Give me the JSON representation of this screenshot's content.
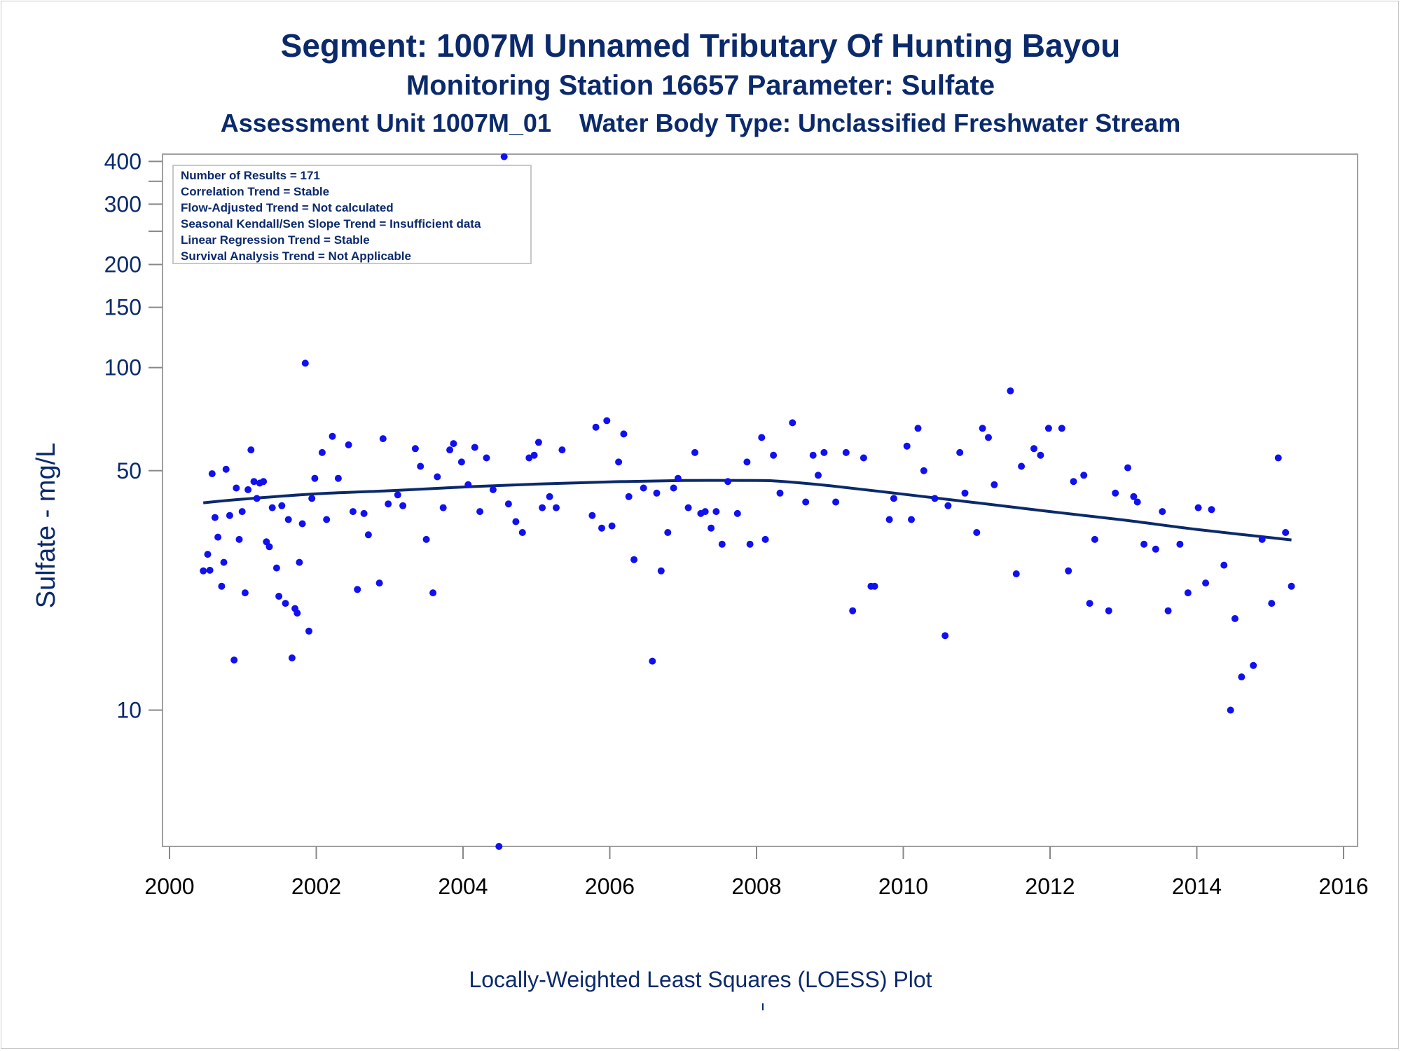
{
  "header": {
    "title": "Segment: 1007M  Unnamed Tributary Of Hunting Bayou",
    "subtitle": "Monitoring Station 16657 Parameter: Sulfate",
    "subtitle2_part1": "Assessment Unit 1007M_01",
    "subtitle2_part2": "Water Body Type: Unclassified Freshwater Stream"
  },
  "footer": {
    "caption": "Locally-Weighted Least Squares (LOESS) Plot"
  },
  "stats": [
    "Number of Results = 171",
    "Correlation Trend = Stable",
    "Flow-Adjusted Trend = Not calculated",
    "Seasonal Kendall/Sen Slope Trend = Insufficient data",
    "Linear Regression Trend = Stable",
    "Survival Analysis Trend = Not Applicable"
  ],
  "colors": {
    "points": "#1010f0",
    "loess": "#0b2a6b",
    "text": "#0b2a6b",
    "axis": "#a0a0a0"
  },
  "chart_data": {
    "type": "scatter",
    "ylabel": "Sulfate - mg/L",
    "xlabel": "",
    "yscale": "log",
    "xlim": [
      2000,
      2016
    ],
    "ylim": [
      4,
      420
    ],
    "x_ticks": [
      "2000",
      "2002",
      "2004",
      "2006",
      "2008",
      "2010",
      "2012",
      "2014",
      "2016"
    ],
    "y_ticks": [
      {
        "label": "400",
        "value": 400
      },
      {
        "label": "300",
        "value": 300
      },
      {
        "label": "200",
        "value": 200
      },
      {
        "label": "150",
        "value": 150
      },
      {
        "label": "100",
        "value": 100
      },
      {
        "label": "50",
        "value": 50
      },
      {
        "label": "10",
        "value": 10
      }
    ],
    "y_minor_ticks": [
      350,
      250
    ],
    "points": [
      [
        2000.46,
        25.5
      ],
      [
        2000.52,
        28.5
      ],
      [
        2000.55,
        25.6
      ],
      [
        2000.58,
        49
      ],
      [
        2000.62,
        36.5
      ],
      [
        2000.66,
        32
      ],
      [
        2000.71,
        23
      ],
      [
        2000.74,
        27
      ],
      [
        2000.77,
        50.5
      ],
      [
        2000.82,
        37
      ],
      [
        2000.88,
        14
      ],
      [
        2000.91,
        44.5
      ],
      [
        2000.95,
        31.5
      ],
      [
        2000.99,
        38
      ],
      [
        2001.03,
        22
      ],
      [
        2001.07,
        44
      ],
      [
        2001.11,
        57.5
      ],
      [
        2001.15,
        46.5
      ],
      [
        2001.19,
        41.5
      ],
      [
        2001.23,
        46
      ],
      [
        2001.28,
        46.5
      ],
      [
        2001.32,
        31
      ],
      [
        2001.36,
        30
      ],
      [
        2001.4,
        39
      ],
      [
        2001.46,
        26
      ],
      [
        2001.49,
        21.5
      ],
      [
        2001.53,
        39.5
      ],
      [
        2001.58,
        20.5
      ],
      [
        2001.62,
        36
      ],
      [
        2001.67,
        14.2
      ],
      [
        2001.71,
        19.8
      ],
      [
        2001.74,
        19.2
      ],
      [
        2001.77,
        27
      ],
      [
        2001.81,
        35
      ],
      [
        2001.85,
        103
      ],
      [
        2001.9,
        17
      ],
      [
        2001.94,
        41.5
      ],
      [
        2001.98,
        47.5
      ],
      [
        2002.08,
        56.5
      ],
      [
        2002.14,
        36
      ],
      [
        2002.22,
        63
      ],
      [
        2002.3,
        47.5
      ],
      [
        2002.44,
        59.5
      ],
      [
        2002.5,
        38
      ],
      [
        2002.56,
        22.5
      ],
      [
        2002.65,
        37.5
      ],
      [
        2002.71,
        32.5
      ],
      [
        2002.86,
        23.5
      ],
      [
        2002.91,
        62
      ],
      [
        2002.98,
        40
      ],
      [
        2003.11,
        42.5
      ],
      [
        2003.18,
        39.5
      ],
      [
        2003.35,
        58
      ],
      [
        2003.42,
        51.5
      ],
      [
        2003.5,
        31.5
      ],
      [
        2003.59,
        22
      ],
      [
        2003.65,
        48
      ],
      [
        2003.73,
        39
      ],
      [
        2003.82,
        57.5
      ],
      [
        2003.87,
        60
      ],
      [
        2003.98,
        53
      ],
      [
        2004.07,
        45.5
      ],
      [
        2004.16,
        58.5
      ],
      [
        2004.23,
        38
      ],
      [
        2004.32,
        54.5
      ],
      [
        2004.41,
        44
      ],
      [
        2004.49,
        4.0
      ],
      [
        2004.56,
        413
      ],
      [
        2004.62,
        40
      ],
      [
        2004.72,
        35.5
      ],
      [
        2004.81,
        33
      ],
      [
        2004.9,
        54.5
      ],
      [
        2004.97,
        55.5
      ],
      [
        2005.03,
        60.5
      ],
      [
        2005.08,
        39
      ],
      [
        2005.18,
        42
      ],
      [
        2005.27,
        39
      ],
      [
        2005.35,
        57.5
      ],
      [
        2005.76,
        37
      ],
      [
        2005.81,
        67
      ],
      [
        2005.89,
        34
      ],
      [
        2005.96,
        70
      ],
      [
        2006.03,
        34.5
      ],
      [
        2006.12,
        53
      ],
      [
        2006.19,
        64
      ],
      [
        2006.26,
        42
      ],
      [
        2006.33,
        27.5
      ],
      [
        2006.46,
        44.5
      ],
      [
        2006.58,
        13.9
      ],
      [
        2006.64,
        43
      ],
      [
        2006.7,
        25.5
      ],
      [
        2006.79,
        33
      ],
      [
        2006.87,
        44.5
      ],
      [
        2006.93,
        47.5
      ],
      [
        2007.07,
        39
      ],
      [
        2007.16,
        56.5
      ],
      [
        2007.24,
        37.5
      ],
      [
        2007.3,
        38
      ],
      [
        2007.38,
        34
      ],
      [
        2007.45,
        38
      ],
      [
        2007.53,
        30.5
      ],
      [
        2007.61,
        46.5
      ],
      [
        2007.74,
        37.5
      ],
      [
        2007.87,
        53
      ],
      [
        2007.91,
        30.5
      ],
      [
        2008.07,
        62.5
      ],
      [
        2008.12,
        31.5
      ],
      [
        2008.23,
        55.5
      ],
      [
        2008.32,
        43
      ],
      [
        2008.49,
        69
      ],
      [
        2008.67,
        40.5
      ],
      [
        2008.77,
        55.5
      ],
      [
        2008.84,
        48.5
      ],
      [
        2008.92,
        56.5
      ],
      [
        2009.08,
        40.5
      ],
      [
        2009.22,
        56.5
      ],
      [
        2009.31,
        19.5
      ],
      [
        2009.46,
        54.5
      ],
      [
        2009.56,
        23
      ],
      [
        2009.61,
        23
      ],
      [
        2009.81,
        36
      ],
      [
        2009.87,
        41.5
      ],
      [
        2010.05,
        59
      ],
      [
        2010.11,
        36
      ],
      [
        2010.2,
        66.5
      ],
      [
        2010.28,
        50
      ],
      [
        2010.43,
        41.5
      ],
      [
        2010.57,
        16.5
      ],
      [
        2010.61,
        39.5
      ],
      [
        2010.77,
        56.5
      ],
      [
        2010.84,
        43
      ],
      [
        2011.0,
        33
      ],
      [
        2011.08,
        66.5
      ],
      [
        2011.16,
        62.5
      ],
      [
        2011.24,
        45.5
      ],
      [
        2011.46,
        85.5
      ],
      [
        2011.54,
        25
      ],
      [
        2011.61,
        51.5
      ],
      [
        2011.78,
        58
      ],
      [
        2011.87,
        55.5
      ],
      [
        2011.98,
        66.5
      ],
      [
        2012.16,
        66.5
      ],
      [
        2012.25,
        25.5
      ],
      [
        2012.32,
        46.5
      ],
      [
        2012.46,
        48.5
      ],
      [
        2012.54,
        20.5
      ],
      [
        2012.61,
        31.5
      ],
      [
        2012.8,
        19.5
      ],
      [
        2012.89,
        43
      ],
      [
        2013.06,
        51
      ],
      [
        2013.14,
        42
      ],
      [
        2013.19,
        40.5
      ],
      [
        2013.28,
        30.5
      ],
      [
        2013.44,
        29.5
      ],
      [
        2013.53,
        38
      ],
      [
        2013.61,
        19.5
      ],
      [
        2013.77,
        30.5
      ],
      [
        2013.88,
        22
      ],
      [
        2014.02,
        39
      ],
      [
        2014.12,
        23.5
      ],
      [
        2014.2,
        38.5
      ],
      [
        2014.37,
        26.5
      ],
      [
        2014.46,
        10
      ],
      [
        2014.52,
        18.5
      ],
      [
        2014.61,
        12.5
      ],
      [
        2014.77,
        13.5
      ],
      [
        2014.89,
        31.5
      ],
      [
        2015.02,
        20.5
      ],
      [
        2015.11,
        54.5
      ],
      [
        2015.21,
        33
      ],
      [
        2015.29,
        23
      ]
    ],
    "loess": [
      [
        2000.46,
        40.3
      ],
      [
        2001.0,
        41.3
      ],
      [
        2002.0,
        42.8
      ],
      [
        2003.0,
        43.7
      ],
      [
        2004.0,
        44.8
      ],
      [
        2005.0,
        45.7
      ],
      [
        2006.0,
        46.4
      ],
      [
        2007.0,
        46.8
      ],
      [
        2008.0,
        46.8
      ],
      [
        2008.3,
        46.6
      ],
      [
        2009.0,
        45.2
      ],
      [
        2010.0,
        42.7
      ],
      [
        2011.0,
        40.3
      ],
      [
        2012.0,
        38.0
      ],
      [
        2013.0,
        35.9
      ],
      [
        2014.0,
        33.7
      ],
      [
        2015.29,
        31.4
      ]
    ]
  }
}
